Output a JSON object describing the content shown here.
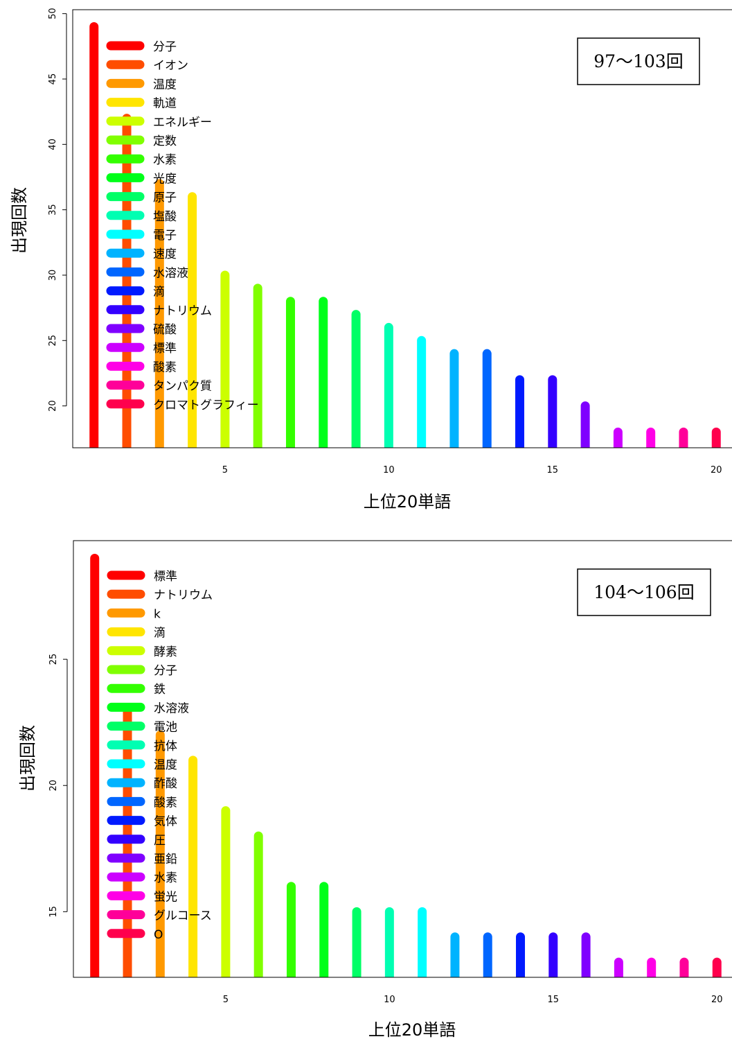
{
  "chart_data": [
    {
      "type": "bar",
      "badge": "97～103回",
      "xlabel": "上位20単語",
      "ylabel": "出現回数",
      "xlim": [
        0.35,
        20.65
      ],
      "ylim": [
        16.8,
        50.3
      ],
      "xticks": [
        5,
        10,
        15,
        20
      ],
      "yticks": [
        20,
        25,
        30,
        35,
        40,
        45,
        50
      ],
      "legend_position": "top-left",
      "grid": false,
      "x": [
        1,
        2,
        3,
        4,
        5,
        6,
        7,
        8,
        9,
        10,
        11,
        12,
        13,
        14,
        15,
        16,
        17,
        18,
        19,
        20
      ],
      "categories": [
        "分子",
        "イオン",
        "温度",
        "軌道",
        "エネルギー",
        "定数",
        "水素",
        "光度",
        "原子",
        "塩酸",
        "電子",
        "速度",
        "水溶液",
        "滴",
        "ナトリウム",
        "硫酸",
        "標準",
        "酸素",
        "タンパク質",
        "クロマトグラフィー"
      ],
      "values": [
        49,
        42,
        37,
        36,
        30,
        29,
        28,
        28,
        27,
        26,
        25,
        24,
        24,
        22,
        22,
        20,
        18,
        18,
        18,
        18
      ],
      "colors": [
        "#ff0000",
        "#ff4d00",
        "#ff9900",
        "#ffe500",
        "#ccff00",
        "#80ff00",
        "#33ff00",
        "#00ff19",
        "#00ff66",
        "#00ffb2",
        "#00ffff",
        "#00b3ff",
        "#0066ff",
        "#001aff",
        "#3300ff",
        "#7f00ff",
        "#cc00ff",
        "#ff00e6",
        "#ff0099",
        "#ff004d"
      ]
    },
    {
      "type": "bar",
      "badge": "104～106回",
      "xlabel": "上位20単語",
      "ylabel": "出現回数",
      "xlim": [
        0.35,
        20.65
      ],
      "ylim": [
        12.4,
        29.7
      ],
      "xticks": [
        5,
        10,
        15,
        20
      ],
      "yticks": [
        15,
        20,
        25
      ],
      "legend_position": "top-left",
      "grid": false,
      "x": [
        1,
        2,
        3,
        4,
        5,
        6,
        7,
        8,
        9,
        10,
        11,
        12,
        13,
        14,
        15,
        16,
        17,
        18,
        19,
        20
      ],
      "categories": [
        "標準",
        "ナトリウム",
        "k",
        "滴",
        "酵素",
        "分子",
        "鉄",
        "水溶液",
        "電池",
        "抗体",
        "温度",
        "酢酸",
        "酸素",
        "気体",
        "圧",
        "亜鉛",
        "水素",
        "蛍光",
        "グルコース",
        "O"
      ],
      "values": [
        29,
        23,
        22,
        21,
        19,
        18,
        16,
        16,
        15,
        15,
        15,
        14,
        14,
        14,
        14,
        14,
        13,
        13,
        13,
        13
      ],
      "colors": [
        "#ff0000",
        "#ff4d00",
        "#ff9900",
        "#ffe500",
        "#ccff00",
        "#80ff00",
        "#33ff00",
        "#00ff19",
        "#00ff66",
        "#00ffb2",
        "#00ffff",
        "#00b3ff",
        "#0066ff",
        "#001aff",
        "#3300ff",
        "#7f00ff",
        "#cc00ff",
        "#ff00e6",
        "#ff0099",
        "#ff004d"
      ]
    }
  ]
}
